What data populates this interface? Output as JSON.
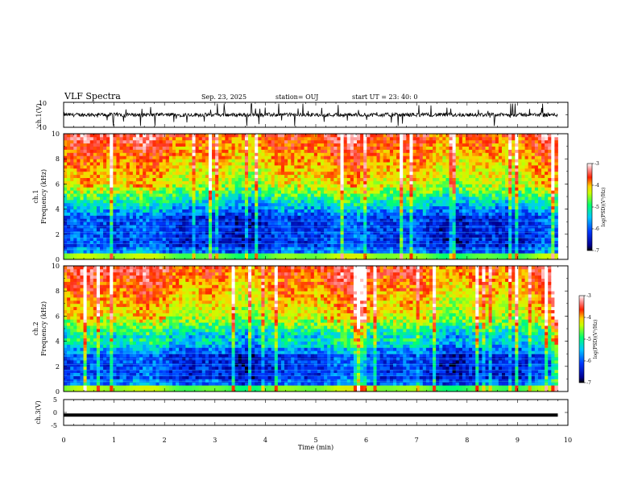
{
  "header": {
    "title": "VLF Spectra",
    "date": "Sep. 23, 2025",
    "station": "station= OUJ",
    "start_ut": "start  UT  =   23: 40: 0"
  },
  "chart_data": [
    {
      "type": "line",
      "id": "ch1-waveform",
      "ylabel": "ch.1(V)",
      "ylim": [
        -10,
        10
      ],
      "yticks": [
        "10",
        "-10"
      ],
      "baseline": 0,
      "x_extent_min": [
        0,
        9.8
      ]
    },
    {
      "type": "heatmap",
      "id": "ch1-spectrogram",
      "ylabel": "Frequency (kHz)",
      "channel_label": "ch.1",
      "ylim": [
        0,
        10
      ],
      "yticks": [
        "0",
        "2",
        "4",
        "6",
        "8",
        "10"
      ],
      "x_extent_min": [
        0,
        9.8
      ],
      "colorbar": {
        "label": "log(PSD)(V²/Hz)",
        "range": [
          -7,
          -3
        ],
        "ticks": [
          "-3",
          "-4",
          "-5",
          "-6",
          "-7"
        ]
      }
    },
    {
      "type": "heatmap",
      "id": "ch2-spectrogram",
      "ylabel": "Frequency (kHz)",
      "channel_label": "ch.2",
      "ylim": [
        0,
        10
      ],
      "yticks": [
        "0",
        "2",
        "4",
        "6",
        "8",
        "10"
      ],
      "x_extent_min": [
        0,
        9.8
      ],
      "colorbar": {
        "label": "log(PSD)(V²/Hz)",
        "range": [
          -7,
          -3
        ],
        "ticks": [
          "-3",
          "-4",
          "-5",
          "-6",
          "-7"
        ]
      }
    },
    {
      "type": "line",
      "id": "ch3-trace",
      "ylabel": "ch.3(V)",
      "ylim": [
        -5,
        5
      ],
      "yticks": [
        "5",
        "0",
        "-5"
      ],
      "value": -1,
      "x_extent_min": [
        0,
        9.8
      ]
    }
  ],
  "x_axis": {
    "label": "Time (min)",
    "range": [
      0,
      10
    ],
    "ticks": [
      "0",
      "1",
      "2",
      "3",
      "4",
      "5",
      "6",
      "7",
      "8",
      "9",
      "10"
    ]
  },
  "colors": {
    "axis": "#000000",
    "background": "#ffffff"
  }
}
